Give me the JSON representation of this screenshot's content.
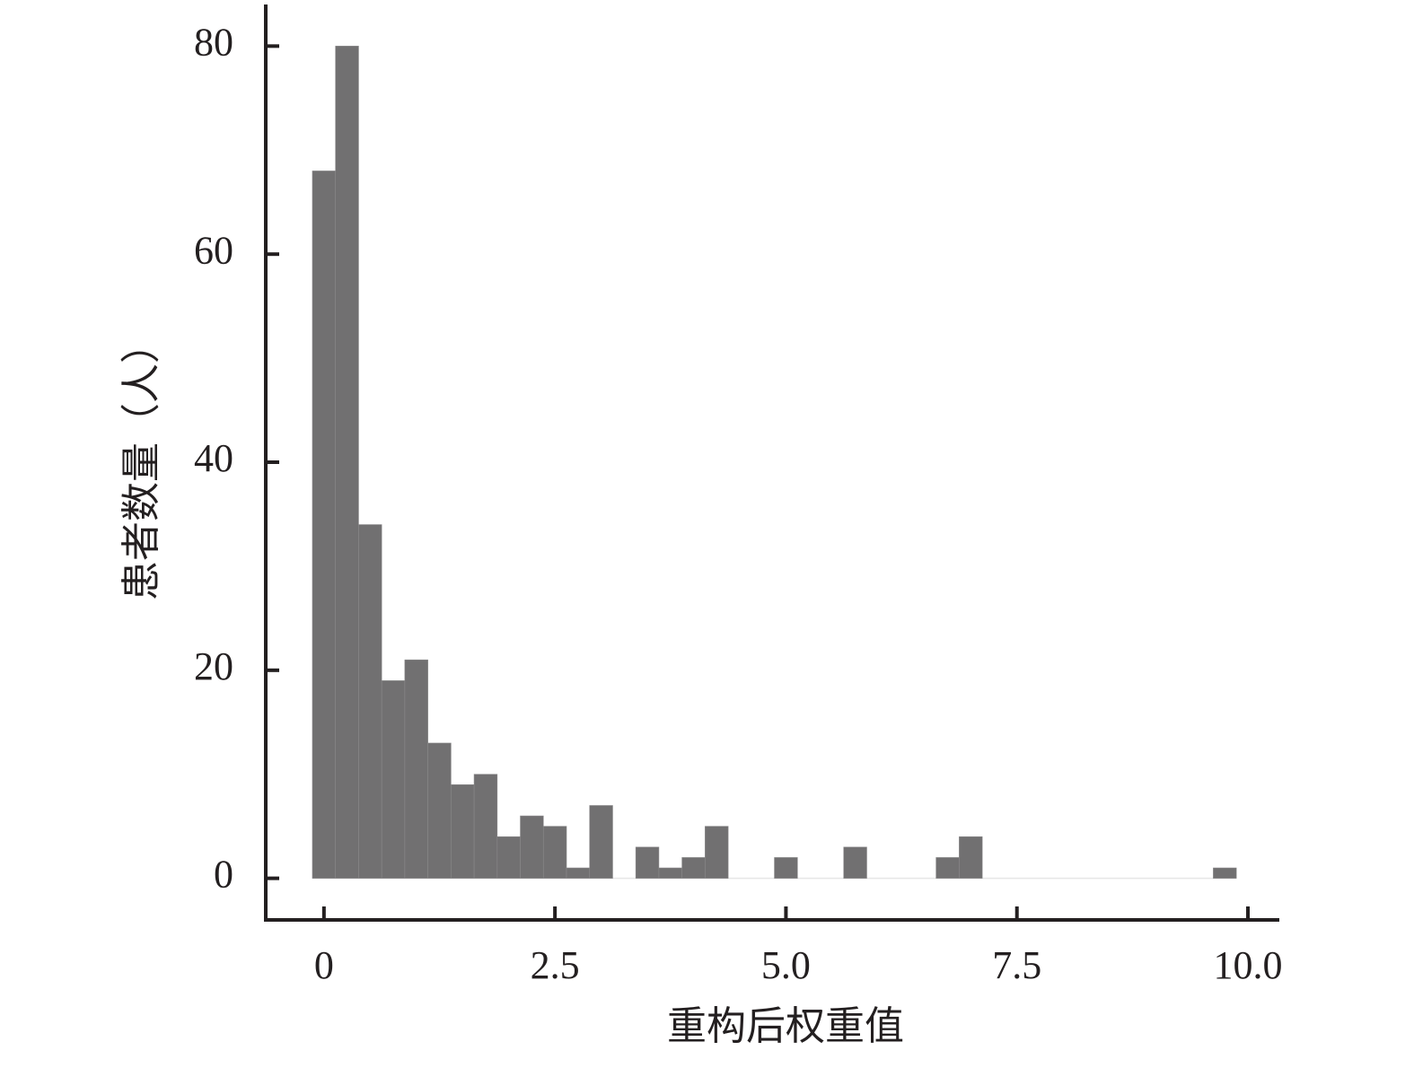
{
  "chart_data": {
    "type": "histogram",
    "xlabel": "重构后权重值",
    "ylabel": "患者数量（人）",
    "bins": [
      -0.125,
      0.125,
      0.375,
      0.625,
      0.875,
      1.125,
      1.375,
      1.625,
      1.875,
      2.125,
      2.375,
      2.625,
      2.875,
      3.125,
      3.375,
      3.625,
      3.875,
      4.125,
      4.375,
      4.625,
      4.875,
      5.125,
      5.375,
      5.625,
      5.875,
      6.125,
      6.375,
      6.625,
      6.875,
      7.125,
      7.375,
      7.625,
      7.875,
      8.125,
      8.375,
      8.625,
      8.875,
      9.125,
      9.375,
      9.625,
      9.875
    ],
    "values": [
      68,
      80,
      34,
      19,
      21,
      13,
      9,
      10,
      4,
      6,
      5,
      1,
      7,
      0,
      3,
      1,
      2,
      5,
      0,
      0,
      2,
      0,
      0,
      3,
      0,
      0,
      0,
      2,
      4,
      0,
      0,
      0,
      0,
      0,
      0,
      0,
      0,
      0,
      0,
      1
    ],
    "color": "#717071",
    "xlim": [
      -0.63,
      10.34
    ],
    "ylim": [
      -4,
      84
    ],
    "xticks": [
      0,
      2.5,
      {
        "value": 5,
        "label": "5.0"
      },
      7.5,
      {
        "value": 10,
        "label": "10.0"
      }
    ],
    "yticks": [
      0,
      20,
      40,
      60,
      80
    ]
  }
}
